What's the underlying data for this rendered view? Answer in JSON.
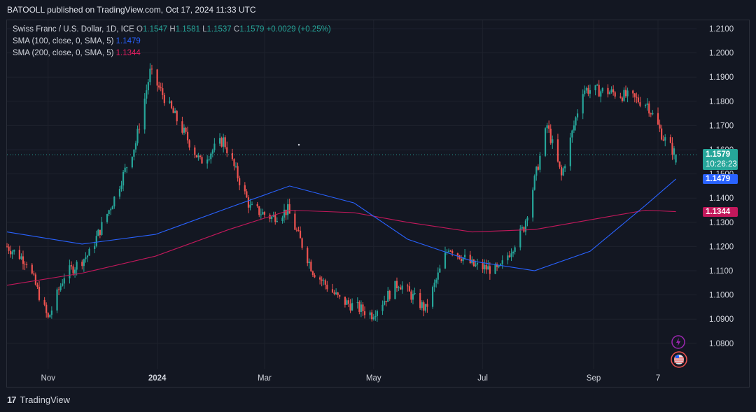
{
  "header": {
    "title": "BATOOLL published on TradingView.com, Oct 17, 2024 11:33 UTC"
  },
  "legend": {
    "symbol": "Swiss Franc / U.S. Dollar, 1D, ICE",
    "o_label": "O",
    "o_value": "1.1547",
    "h_label": "H",
    "h_value": "1.1581",
    "l_label": "L",
    "l_value": "1.1537",
    "c_label": "C",
    "c_value": "1.1579",
    "change": "+0.0029 (+0.25%)",
    "sma100_label": "SMA (100, close, 0, SMA, 5)",
    "sma100_value": "1.1479",
    "sma200_label": "SMA (200, close, 0, SMA, 5)",
    "sma200_value": "1.1344"
  },
  "price_tags": {
    "last_price": "1.1579",
    "countdown": "10:26:23",
    "sma100": "1.1479",
    "sma200": "1.1344"
  },
  "footer": {
    "brand": "TradingView"
  },
  "colors": {
    "background": "#131722",
    "up": "#26a69a",
    "down": "#ef5350",
    "sma100": "#2962ff",
    "sma200": "#c2185b",
    "grid": "#1e222d"
  },
  "chart_data": {
    "type": "candlestick",
    "symbol": "CHFUSD",
    "interval": "1D",
    "ylim": [
      1.074,
      1.2135
    ],
    "y_ticks": [
      "1.2100",
      "1.2000",
      "1.1900",
      "1.1800",
      "1.1700",
      "1.1600",
      "1.1500",
      "1.1400",
      "1.1300",
      "1.1200",
      "1.1100",
      "1.1000",
      "1.0900",
      "1.0800"
    ],
    "x_ticks": [
      "Nov",
      "2024",
      "Mar",
      "May",
      "Jul",
      "Sep",
      "7"
    ],
    "series": [
      {
        "name": "Swiss Franc / U.S. Dollar",
        "approx_close_path": [
          {
            "date": "2023-10-09",
            "close": 1.12
          },
          {
            "date": "2023-10-20",
            "close": 1.114
          },
          {
            "date": "2023-11-01",
            "close": 1.09
          },
          {
            "date": "2023-11-10",
            "close": 1.108
          },
          {
            "date": "2023-11-24",
            "close": 1.117
          },
          {
            "date": "2023-12-08",
            "close": 1.14
          },
          {
            "date": "2023-12-20",
            "close": 1.163
          },
          {
            "date": "2023-12-28",
            "close": 1.192
          },
          {
            "date": "2024-01-10",
            "close": 1.175
          },
          {
            "date": "2024-01-25",
            "close": 1.155
          },
          {
            "date": "2024-02-07",
            "close": 1.164
          },
          {
            "date": "2024-02-22",
            "close": 1.136
          },
          {
            "date": "2024-03-05",
            "close": 1.132
          },
          {
            "date": "2024-03-14",
            "close": 1.135
          },
          {
            "date": "2024-03-28",
            "close": 1.11
          },
          {
            "date": "2024-04-12",
            "close": 1.098
          },
          {
            "date": "2024-04-30",
            "close": 1.092
          },
          {
            "date": "2024-05-15",
            "close": 1.105
          },
          {
            "date": "2024-05-30",
            "close": 1.094
          },
          {
            "date": "2024-06-12",
            "close": 1.12
          },
          {
            "date": "2024-06-26",
            "close": 1.112
          },
          {
            "date": "2024-07-10",
            "close": 1.11
          },
          {
            "date": "2024-07-24",
            "close": 1.128
          },
          {
            "date": "2024-08-06",
            "close": 1.17
          },
          {
            "date": "2024-08-14",
            "close": 1.149
          },
          {
            "date": "2024-08-26",
            "close": 1.185
          },
          {
            "date": "2024-09-09",
            "close": 1.184
          },
          {
            "date": "2024-09-20",
            "close": 1.182
          },
          {
            "date": "2024-10-01",
            "close": 1.179
          },
          {
            "date": "2024-10-10",
            "close": 1.165
          },
          {
            "date": "2024-10-17",
            "close": 1.1579
          }
        ],
        "last_bar": {
          "date": "2024-10-17",
          "open": 1.1547,
          "high": 1.1581,
          "low": 1.1537,
          "close": 1.1579
        }
      },
      {
        "name": "SMA (100, close, 0, SMA, 5)",
        "last_value": 1.1479,
        "approx_path": [
          {
            "date": "2023-10-09",
            "value": 1.126
          },
          {
            "date": "2023-11-20",
            "value": 1.121
          },
          {
            "date": "2023-12-31",
            "value": 1.125
          },
          {
            "date": "2024-02-10",
            "value": 1.136
          },
          {
            "date": "2024-03-15",
            "value": 1.145
          },
          {
            "date": "2024-04-20",
            "value": 1.138
          },
          {
            "date": "2024-05-20",
            "value": 1.123
          },
          {
            "date": "2024-06-25",
            "value": 1.114
          },
          {
            "date": "2024-07-30",
            "value": 1.11
          },
          {
            "date": "2024-08-30",
            "value": 1.118
          },
          {
            "date": "2024-09-30",
            "value": 1.137
          },
          {
            "date": "2024-10-17",
            "value": 1.1479
          }
        ]
      },
      {
        "name": "SMA (200, close, 0, SMA, 5)",
        "last_value": 1.1344,
        "approx_path": [
          {
            "date": "2023-10-09",
            "value": 1.104
          },
          {
            "date": "2023-11-20",
            "value": 1.109
          },
          {
            "date": "2023-12-31",
            "value": 1.116
          },
          {
            "date": "2024-02-10",
            "value": 1.127
          },
          {
            "date": "2024-03-15",
            "value": 1.135
          },
          {
            "date": "2024-04-20",
            "value": 1.134
          },
          {
            "date": "2024-05-20",
            "value": 1.13
          },
          {
            "date": "2024-06-25",
            "value": 1.126
          },
          {
            "date": "2024-07-30",
            "value": 1.127
          },
          {
            "date": "2024-08-30",
            "value": 1.131
          },
          {
            "date": "2024-09-30",
            "value": 1.135
          },
          {
            "date": "2024-10-17",
            "value": 1.1344
          }
        ]
      }
    ]
  }
}
